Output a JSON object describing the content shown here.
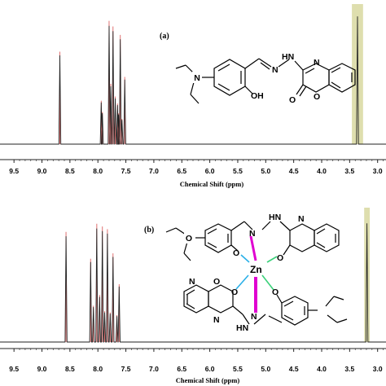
{
  "chart_data": [
    {
      "type": "line",
      "panel_label": "(a)",
      "xlabel": "Chemical Shift (ppm)",
      "xlim": [
        9.75,
        2.85
      ],
      "x_reversed": true,
      "ticks": [
        "9.5",
        "9.0",
        "8.5",
        "8.0",
        "7.5",
        "7.0",
        "6.5",
        "6.0",
        "5.5",
        "5.0",
        "4.5",
        "4.0",
        "3.5",
        "3.0"
      ],
      "peaks": [
        {
          "ppm": 8.68,
          "height": 0.66
        },
        {
          "ppm": 7.94,
          "height": 0.31
        },
        {
          "ppm": 7.92,
          "height": 0.23
        },
        {
          "ppm": 7.8,
          "height": 0.88
        },
        {
          "ppm": 7.77,
          "height": 0.43
        },
        {
          "ppm": 7.73,
          "height": 0.84
        },
        {
          "ppm": 7.69,
          "height": 0.34
        },
        {
          "ppm": 7.65,
          "height": 0.29
        },
        {
          "ppm": 7.63,
          "height": 0.22
        },
        {
          "ppm": 7.6,
          "height": 0.78
        },
        {
          "ppm": 7.57,
          "height": 0.18
        },
        {
          "ppm": 7.52,
          "height": 0.48
        }
      ],
      "highlight_peak": {
        "ppm": 3.36,
        "height": 0.95,
        "span": [
          3.46,
          3.26
        ]
      },
      "structure": {
        "atoms": [
          "N",
          "HN",
          "N",
          "N",
          "OH",
          "O",
          "O"
        ]
      }
    },
    {
      "type": "line",
      "panel_label": "(b)",
      "xlabel": "Chemical Shift (ppm)",
      "xlim": [
        9.75,
        2.85
      ],
      "x_reversed": true,
      "ticks": [
        "9.5",
        "9.0",
        "8.5",
        "8.0",
        "7.5",
        "7.0",
        "6.5",
        "6.0",
        "5.5",
        "5.0",
        "4.5",
        "4.0",
        "3.5",
        "3.0"
      ],
      "peaks": [
        {
          "ppm": 8.57,
          "height": 0.82
        },
        {
          "ppm": 8.13,
          "height": 0.62
        },
        {
          "ppm": 8.08,
          "height": 0.27
        },
        {
          "ppm": 8.02,
          "height": 0.88
        },
        {
          "ppm": 7.97,
          "height": 0.35
        },
        {
          "ppm": 7.92,
          "height": 0.86
        },
        {
          "ppm": 7.88,
          "height": 0.23
        },
        {
          "ppm": 7.83,
          "height": 0.84
        },
        {
          "ppm": 7.78,
          "height": 0.22
        },
        {
          "ppm": 7.73,
          "height": 0.66
        },
        {
          "ppm": 7.66,
          "height": 0.2
        },
        {
          "ppm": 7.62,
          "height": 0.43
        }
      ],
      "highlight_peak": {
        "ppm": 3.19,
        "height": 0.92,
        "span": [
          3.24,
          3.14
        ]
      },
      "structure": {
        "atoms": [
          "HN",
          "N",
          "N",
          "O",
          "O",
          "Zn",
          "O",
          "O",
          "N",
          "HN",
          "N",
          "N",
          "O",
          "O"
        ]
      }
    }
  ]
}
